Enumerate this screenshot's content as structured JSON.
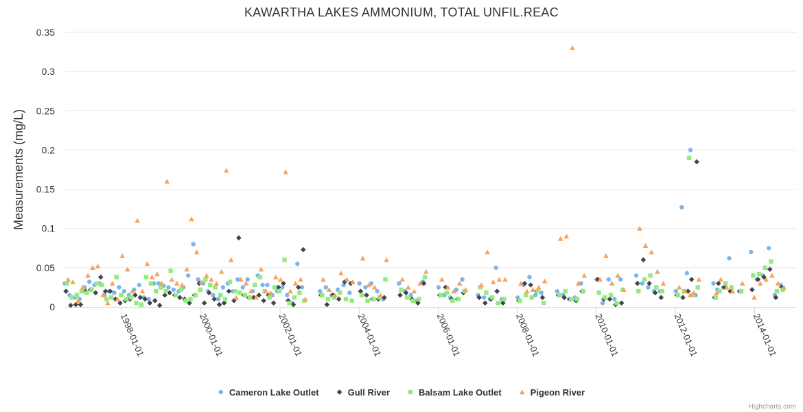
{
  "chart_data": {
    "type": "scatter",
    "title": "KAWARTHA LAKES AMMONIUM, TOTAL UNFIL.REAC",
    "ylabel": "Measurements (mg/L)",
    "xlabel": "",
    "ylim": [
      0,
      0.35
    ],
    "yticks": [
      0,
      0.05,
      0.1,
      0.15,
      0.2,
      0.25,
      0.3,
      0.35
    ],
    "ytick_labels": [
      "0",
      "0.05",
      "0.1",
      "0.15",
      "0.2",
      "0.25",
      "0.3",
      "0.35"
    ],
    "xlim": [
      1996.55,
      2015.05
    ],
    "xticks": [
      1998,
      2000,
      2002,
      2004,
      2006,
      2008,
      2010,
      2012,
      2014
    ],
    "xtick_labels": [
      "1998-01-01",
      "2000-01-01",
      "2002-01-01",
      "2004-01-01",
      "2006-01-01",
      "2008-01-01",
      "2010-01-01",
      "2012-01-01",
      "2014-01-01"
    ],
    "grid": true,
    "legend_position": "bottom-center",
    "credits": "Highcharts.com",
    "series": [
      {
        "name": "Cameron Lake Outlet",
        "color": "#7cb5ec",
        "marker": "circle",
        "x": [
          1996.6,
          1996.72,
          1996.85,
          1996.97,
          1997.1,
          1997.22,
          1997.35,
          1997.48,
          1997.6,
          1997.72,
          1997.85,
          1997.97,
          1998.1,
          1998.22,
          1998.35,
          1998.48,
          1998.6,
          1998.72,
          1998.85,
          1998.97,
          1999.1,
          1999.22,
          1999.35,
          1999.48,
          1999.6,
          1999.72,
          1999.85,
          1999.97,
          2000.1,
          2000.22,
          2000.35,
          2000.48,
          2000.6,
          2000.72,
          2000.85,
          2000.97,
          2001.1,
          2001.22,
          2001.35,
          2001.48,
          2001.6,
          2001.72,
          2001.85,
          2001.97,
          2002.1,
          2002.22,
          2002.35,
          2002.48,
          2002.6,
          2003.05,
          2003.2,
          2003.35,
          2003.5,
          2003.65,
          2003.8,
          2004.05,
          2004.2,
          2004.35,
          2004.5,
          2004.65,
          2005.05,
          2005.2,
          2005.35,
          2005.5,
          2005.65,
          2006.05,
          2006.2,
          2006.35,
          2006.5,
          2006.65,
          2007.05,
          2007.2,
          2007.35,
          2007.5,
          2007.65,
          2008.05,
          2008.2,
          2008.35,
          2008.5,
          2008.65,
          2009.05,
          2009.2,
          2009.35,
          2009.5,
          2009.65,
          2010.05,
          2010.2,
          2010.35,
          2010.5,
          2010.65,
          2011.05,
          2011.2,
          2011.35,
          2011.5,
          2011.65,
          2012.05,
          2012.2,
          2012.33,
          2012.42,
          2012.55,
          2013.0,
          2013.1,
          2013.25,
          2013.4,
          2013.65,
          2013.95,
          2014.1,
          2014.25,
          2014.4,
          2014.55,
          2014.7
        ],
        "y": [
          0.03,
          0.015,
          0.012,
          0.01,
          0.025,
          0.032,
          0.028,
          0.03,
          0.015,
          0.02,
          0.018,
          0.025,
          0.02,
          0.015,
          0.022,
          0.028,
          0.012,
          0.01,
          0.03,
          0.03,
          0.027,
          0.025,
          0.022,
          0.02,
          0.025,
          0.04,
          0.08,
          0.035,
          0.03,
          0.02,
          0.015,
          0.01,
          0.025,
          0.03,
          0.02,
          0.035,
          0.025,
          0.035,
          0.02,
          0.04,
          0.028,
          0.028,
          0.015,
          0.02,
          0.025,
          0.015,
          0.005,
          0.055,
          0.025,
          0.02,
          0.025,
          0.015,
          0.022,
          0.028,
          0.018,
          0.03,
          0.025,
          0.03,
          0.02,
          0.01,
          0.03,
          0.02,
          0.015,
          0.008,
          0.032,
          0.025,
          0.015,
          0.012,
          0.022,
          0.035,
          0.015,
          0.012,
          0.01,
          0.05,
          0.01,
          0.012,
          0.028,
          0.038,
          0.015,
          0.018,
          0.02,
          0.015,
          0.01,
          0.012,
          0.03,
          0.035,
          0.005,
          0.035,
          0.01,
          0.035,
          0.04,
          0.03,
          0.025,
          0.02,
          0.02,
          0.02,
          0.127,
          0.043,
          0.2,
          0.015,
          0.03,
          0.022,
          0.025,
          0.062,
          0.02,
          0.07,
          0.035,
          0.04,
          0.075,
          0.015,
          0.028
        ]
      },
      {
        "name": "Gull River",
        "color": "#434348",
        "marker": "diamond",
        "x": [
          1996.6,
          1996.72,
          1996.85,
          1996.97,
          1997.1,
          1997.22,
          1997.35,
          1997.48,
          1997.6,
          1997.72,
          1997.85,
          1997.97,
          1998.1,
          1998.22,
          1998.35,
          1998.48,
          1998.6,
          1998.72,
          1998.85,
          1998.97,
          1999.1,
          1999.22,
          1999.35,
          1999.48,
          1999.6,
          1999.72,
          1999.85,
          1999.97,
          2000.1,
          2000.22,
          2000.35,
          2000.48,
          2000.6,
          2000.72,
          2000.85,
          2000.97,
          2001.1,
          2001.22,
          2001.35,
          2001.48,
          2001.6,
          2001.72,
          2001.85,
          2001.97,
          2002.1,
          2002.22,
          2002.35,
          2002.48,
          2002.6,
          2003.05,
          2003.2,
          2003.35,
          2003.5,
          2003.65,
          2003.8,
          2004.05,
          2004.2,
          2004.35,
          2004.5,
          2004.65,
          2005.05,
          2005.2,
          2005.35,
          2005.5,
          2005.65,
          2006.05,
          2006.2,
          2006.35,
          2006.5,
          2006.65,
          2007.05,
          2007.2,
          2007.35,
          2007.5,
          2007.65,
          2008.05,
          2008.2,
          2008.35,
          2008.5,
          2008.65,
          2009.05,
          2009.2,
          2009.35,
          2009.5,
          2009.65,
          2010.05,
          2010.2,
          2010.35,
          2010.5,
          2010.65,
          2011.05,
          2011.2,
          2011.35,
          2011.5,
          2011.65,
          2012.05,
          2012.2,
          2012.33,
          2012.42,
          2012.55,
          2013.0,
          2013.1,
          2013.25,
          2013.4,
          2013.65,
          2013.95,
          2014.1,
          2014.25,
          2014.4,
          2014.55,
          2014.7
        ],
        "y": [
          0.02,
          0.002,
          0.003,
          0.003,
          0.02,
          0.022,
          0.018,
          0.038,
          0.02,
          0.02,
          0.01,
          0.005,
          0.008,
          0.01,
          0.015,
          0.012,
          0.01,
          0.005,
          0.008,
          0.002,
          0.015,
          0.018,
          0.015,
          0.012,
          0.01,
          0.005,
          0.015,
          0.03,
          0.005,
          0.018,
          0.01,
          0.003,
          0.005,
          0.02,
          0.008,
          0.088,
          0.015,
          0.012,
          0.012,
          0.015,
          0.008,
          0.015,
          0.005,
          0.025,
          0.03,
          0.008,
          0.003,
          0.025,
          0.073,
          0.015,
          0.003,
          0.015,
          0.01,
          0.032,
          0.03,
          0.02,
          0.015,
          0.01,
          0.01,
          0.012,
          0.015,
          0.018,
          0.01,
          0.005,
          0.03,
          0.015,
          0.025,
          0.01,
          0.01,
          0.018,
          0.012,
          0.005,
          0.01,
          0.02,
          0.005,
          0.008,
          0.03,
          0.028,
          0.02,
          0.012,
          0.015,
          0.012,
          0.01,
          0.008,
          0.02,
          0.035,
          0.01,
          0.01,
          0.003,
          0.005,
          0.03,
          0.06,
          0.03,
          0.018,
          0.012,
          0.015,
          0.012,
          0.02,
          0.035,
          0.185,
          0.012,
          0.03,
          0.025,
          0.02,
          0.02,
          0.022,
          0.035,
          0.038,
          0.048,
          0.012,
          0.025
        ]
      },
      {
        "name": "Balsam Lake Outlet",
        "color": "#90ed7d",
        "marker": "square",
        "x": [
          1996.6,
          1996.72,
          1996.85,
          1996.97,
          1997.1,
          1997.22,
          1997.35,
          1997.48,
          1997.6,
          1997.72,
          1997.85,
          1997.97,
          1998.1,
          1998.22,
          1998.35,
          1998.48,
          1998.6,
          1998.72,
          1998.85,
          1998.97,
          1999.1,
          1999.22,
          1999.35,
          1999.48,
          1999.6,
          1999.72,
          1999.85,
          1999.97,
          2000.1,
          2000.22,
          2000.35,
          2000.48,
          2000.6,
          2000.72,
          2000.85,
          2000.97,
          2001.1,
          2001.22,
          2001.35,
          2001.48,
          2001.6,
          2001.72,
          2001.85,
          2001.97,
          2002.1,
          2002.22,
          2002.35,
          2002.48,
          2002.6,
          2003.05,
          2003.2,
          2003.35,
          2003.5,
          2003.65,
          2003.8,
          2004.05,
          2004.2,
          2004.35,
          2004.5,
          2004.65,
          2005.05,
          2005.2,
          2005.35,
          2005.5,
          2005.65,
          2006.05,
          2006.2,
          2006.35,
          2006.5,
          2006.65,
          2007.05,
          2007.2,
          2007.35,
          2007.5,
          2007.65,
          2008.05,
          2008.2,
          2008.35,
          2008.5,
          2008.65,
          2009.05,
          2009.2,
          2009.35,
          2009.5,
          2009.65,
          2010.05,
          2010.2,
          2010.35,
          2010.5,
          2010.65,
          2011.05,
          2011.2,
          2011.35,
          2011.5,
          2011.65,
          2012.05,
          2012.2,
          2012.33,
          2012.42,
          2012.55,
          2013.0,
          2013.1,
          2013.25,
          2013.4,
          2013.65,
          2013.95,
          2014.1,
          2014.25,
          2014.4,
          2014.55,
          2014.7
        ],
        "y": [
          0.03,
          0.012,
          0.015,
          0.02,
          0.018,
          0.022,
          0.03,
          0.028,
          0.01,
          0.012,
          0.038,
          0.015,
          0.01,
          0.012,
          0.005,
          0.003,
          0.038,
          0.03,
          0.02,
          0.025,
          0.02,
          0.046,
          0.015,
          0.022,
          0.008,
          0.01,
          0.015,
          0.022,
          0.035,
          0.028,
          0.025,
          0.015,
          0.01,
          0.032,
          0.02,
          0.018,
          0.015,
          0.012,
          0.028,
          0.038,
          0.02,
          0.012,
          0.025,
          0.02,
          0.06,
          0.005,
          0.012,
          0.018,
          0.008,
          0.015,
          0.01,
          0.012,
          0.018,
          0.01,
          0.008,
          0.015,
          0.008,
          0.01,
          0.012,
          0.035,
          0.022,
          0.012,
          0.008,
          0.01,
          0.038,
          0.015,
          0.018,
          0.008,
          0.01,
          0.02,
          0.025,
          0.018,
          0.012,
          0.005,
          0.01,
          0.008,
          0.015,
          0.012,
          0.02,
          0.005,
          0.015,
          0.02,
          0.01,
          0.01,
          0.02,
          0.018,
          0.012,
          0.015,
          0.005,
          0.022,
          0.02,
          0.035,
          0.04,
          0.025,
          0.02,
          0.015,
          0.02,
          0.19,
          0.015,
          0.025,
          0.012,
          0.02,
          0.03,
          0.025,
          0.02,
          0.04,
          0.042,
          0.05,
          0.058,
          0.02,
          0.022
        ]
      },
      {
        "name": "Pigeon River",
        "color": "#f7a35c",
        "marker": "triangle",
        "x": [
          1996.6,
          1996.72,
          1996.85,
          1996.97,
          1997.1,
          1997.22,
          1997.35,
          1997.48,
          1997.6,
          1997.72,
          1997.85,
          1997.97,
          1998.1,
          1998.22,
          1998.35,
          1998.48,
          1998.6,
          1998.72,
          1998.85,
          1998.97,
          1999.1,
          1999.22,
          1999.35,
          1999.48,
          1999.6,
          1999.72,
          1999.85,
          1999.97,
          2000.1,
          2000.22,
          2000.35,
          2000.48,
          2000.6,
          2000.72,
          2000.85,
          2000.97,
          2001.1,
          2001.22,
          2001.35,
          2001.48,
          2001.6,
          2001.72,
          2001.85,
          2001.97,
          2002.1,
          2002.22,
          2002.35,
          2002.48,
          2002.6,
          2003.05,
          2003.2,
          2003.35,
          2003.5,
          2003.65,
          2003.8,
          2004.05,
          2004.2,
          2004.35,
          2004.5,
          2004.65,
          2005.05,
          2005.2,
          2005.35,
          2005.5,
          2005.65,
          2006.05,
          2006.2,
          2006.35,
          2006.5,
          2006.65,
          2007.05,
          2007.2,
          2007.35,
          2007.5,
          2007.65,
          2008.05,
          2008.2,
          2008.35,
          2008.5,
          2008.65,
          2009.05,
          2009.2,
          2009.35,
          2009.5,
          2009.65,
          2010.05,
          2010.2,
          2010.35,
          2010.5,
          2010.65,
          2011.05,
          2011.2,
          2011.35,
          2011.5,
          2011.65,
          2012.05,
          2012.2,
          2012.33,
          2012.42,
          2012.55,
          2013.0,
          2013.1,
          2013.25,
          2013.4,
          2013.65,
          2013.95,
          2014.1,
          2014.25,
          2014.4,
          2014.55,
          2014.7
        ],
        "y": [
          0.035,
          0.032,
          0.008,
          0.025,
          0.04,
          0.05,
          0.052,
          0.015,
          0.005,
          0.03,
          0.01,
          0.065,
          0.048,
          0.02,
          0.11,
          0.02,
          0.055,
          0.038,
          0.042,
          0.03,
          0.16,
          0.035,
          0.03,
          0.028,
          0.048,
          0.112,
          0.07,
          0.032,
          0.04,
          0.035,
          0.03,
          0.045,
          0.174,
          0.06,
          0.012,
          0.035,
          0.03,
          0.02,
          0.012,
          0.048,
          0.02,
          0.018,
          0.038,
          0.035,
          0.172,
          0.02,
          0.03,
          0.035,
          0.01,
          0.035,
          0.022,
          0.015,
          0.043,
          0.035,
          0.032,
          0.062,
          0.028,
          0.025,
          0.015,
          0.06,
          0.035,
          0.025,
          0.02,
          0.03,
          0.045,
          0.035,
          0.025,
          0.02,
          0.03,
          0.022,
          0.028,
          0.07,
          0.032,
          0.035,
          0.035,
          0.03,
          0.02,
          0.022,
          0.025,
          0.033,
          0.087,
          0.09,
          0.33,
          0.03,
          0.04,
          0.035,
          0.065,
          0.03,
          0.04,
          0.022,
          0.1,
          0.078,
          0.07,
          0.045,
          0.03,
          0.025,
          0.02,
          0.015,
          0.018,
          0.035,
          0.018,
          0.035,
          0.025,
          0.02,
          0.03,
          0.012,
          0.03,
          0.035,
          0.04,
          0.03,
          0.025
        ]
      }
    ]
  }
}
